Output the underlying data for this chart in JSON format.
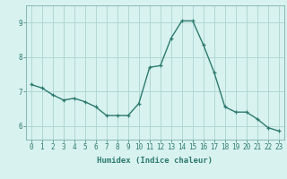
{
  "x": [
    0,
    1,
    2,
    3,
    4,
    5,
    6,
    7,
    8,
    9,
    10,
    11,
    12,
    13,
    14,
    15,
    16,
    17,
    18,
    19,
    20,
    21,
    22,
    23
  ],
  "y": [
    7.2,
    7.1,
    6.9,
    6.75,
    6.8,
    6.7,
    6.55,
    6.3,
    6.3,
    6.3,
    6.65,
    7.7,
    7.75,
    8.55,
    9.05,
    9.05,
    8.35,
    7.55,
    6.55,
    6.4,
    6.4,
    6.2,
    5.95,
    5.85
  ],
  "line_color": "#2d7a6e",
  "marker": "+",
  "marker_size": 3.5,
  "bg_color": "#d8f2f0",
  "grid_color": "#b0d8d4",
  "xlabel": "Humidex (Indice chaleur)",
  "xlim": [
    -0.5,
    23.5
  ],
  "ylim": [
    5.6,
    9.5
  ],
  "yticks": [
    6,
    7,
    8,
    9
  ],
  "xticks": [
    0,
    1,
    2,
    3,
    4,
    5,
    6,
    7,
    8,
    9,
    10,
    11,
    12,
    13,
    14,
    15,
    16,
    17,
    18,
    19,
    20,
    21,
    22,
    23
  ],
  "line_width": 1.0,
  "tick_fontsize": 5.5,
  "label_fontsize": 6.5,
  "spine_color": "#7ab0aa"
}
